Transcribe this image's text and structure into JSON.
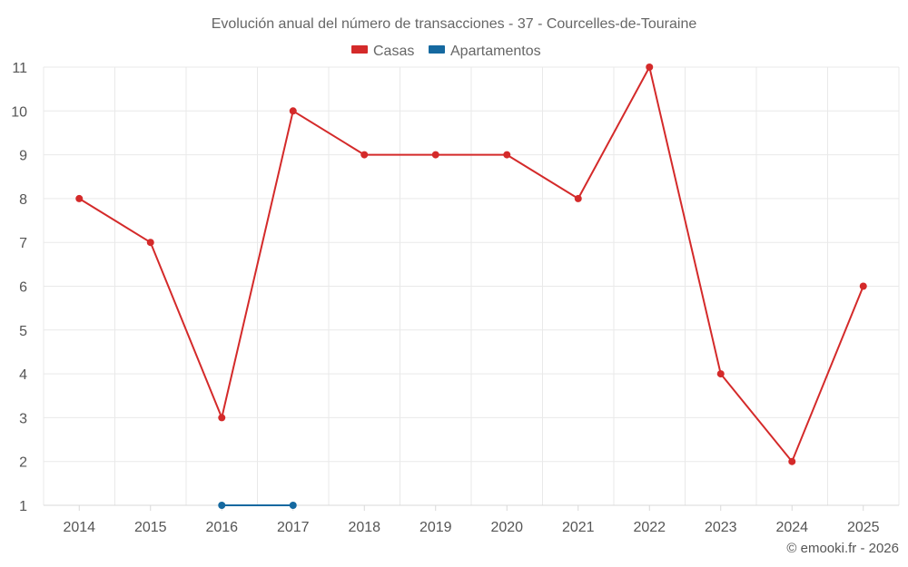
{
  "chart_data": {
    "type": "line",
    "title": "Evolución anual del número de transacciones - 37 - Courcelles-de-Touraine",
    "categories": [
      "2014",
      "2015",
      "2016",
      "2017",
      "2018",
      "2019",
      "2020",
      "2021",
      "2022",
      "2023",
      "2024",
      "2025"
    ],
    "ylim": [
      1,
      11
    ],
    "yticks": [
      "1",
      "2",
      "3",
      "4",
      "5",
      "6",
      "7",
      "8",
      "9",
      "10",
      "11"
    ],
    "grid": true,
    "legend_position": "top-center",
    "series": [
      {
        "name": "Casas",
        "color": "#d42a2a",
        "values": [
          8,
          7,
          3,
          10,
          9,
          9,
          9,
          8,
          11,
          4,
          2,
          6
        ]
      },
      {
        "name": "Apartamentos",
        "color": "#1569a0",
        "values": [
          null,
          null,
          1,
          1,
          null,
          null,
          null,
          null,
          null,
          null,
          null,
          null
        ]
      }
    ]
  },
  "credit": "© emooki.fr - 2026"
}
